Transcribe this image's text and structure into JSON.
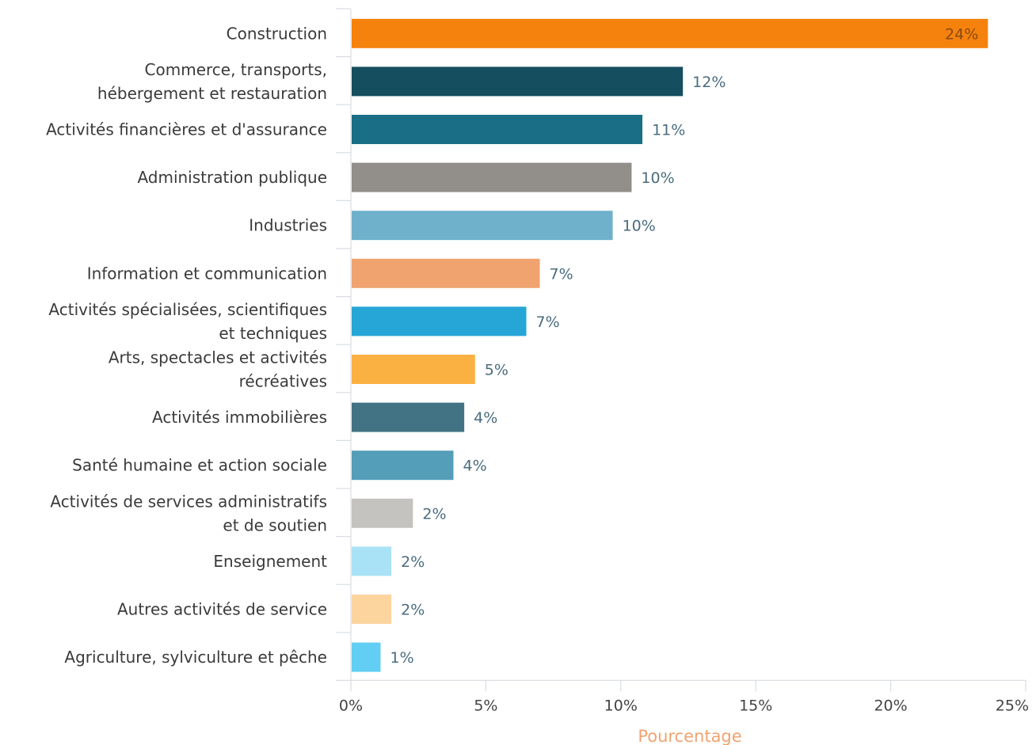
{
  "chart_data": {
    "type": "bar",
    "orientation": "horizontal",
    "categories": [
      [
        "Construction"
      ],
      [
        "Commerce, transports,",
        "hébergement et restauration"
      ],
      [
        "Activités financières et d'assurance"
      ],
      [
        "Administration publique"
      ],
      [
        "Industries"
      ],
      [
        "Information et communication"
      ],
      [
        "Activités spécialisées, scientifiques",
        "et techniques"
      ],
      [
        "Arts, spectacles et activités",
        "récréatives"
      ],
      [
        "Activités immobilières"
      ],
      [
        "Santé humaine et action sociale"
      ],
      [
        "Activités de services administratifs",
        "et de soutien"
      ],
      [
        "Enseignement"
      ],
      [
        "Autres activités de service"
      ],
      [
        "Agriculture, sylviculture et pêche"
      ]
    ],
    "values": [
      23.6,
      12.3,
      10.8,
      10.4,
      9.7,
      7.0,
      6.5,
      4.6,
      4.2,
      3.8,
      2.3,
      1.5,
      1.5,
      1.1
    ],
    "data_labels": [
      "24%",
      "12%",
      "11%",
      "10%",
      "10%",
      "7%",
      "7%",
      "5%",
      "4%",
      "4%",
      "2%",
      "2%",
      "2%",
      "1%"
    ],
    "bar_colors": [
      "#f5820d",
      "#154e5e",
      "#1a6f86",
      "#928e89",
      "#6fb1cb",
      "#f0a36f",
      "#26a6d6",
      "#fbb042",
      "#427384",
      "#549eba",
      "#c5c3c0",
      "#a9e2f6",
      "#fbd49e",
      "#62cef3"
    ],
    "xlabel": "Pourcentage",
    "xlabel_color": "#f0a36f",
    "value_label_color": "#4a6c7e",
    "xlim": [
      0,
      25
    ],
    "xticks": [
      0,
      5,
      10,
      15,
      20,
      25
    ],
    "xtick_labels": [
      "0%",
      "5%",
      "10%",
      "15%",
      "20%",
      "25%"
    ],
    "grid": false,
    "legend": "none"
  }
}
